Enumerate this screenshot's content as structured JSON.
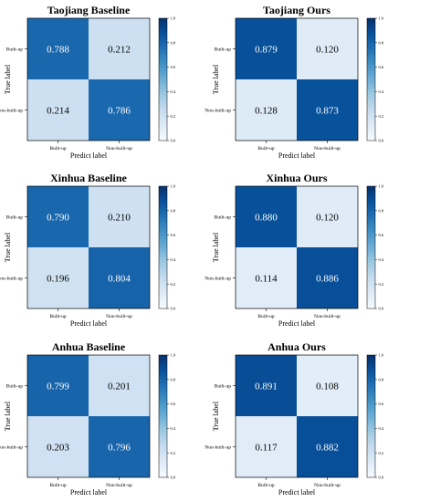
{
  "chart_data": [
    {
      "type": "heatmap",
      "title": "Taojiang Baseline",
      "xlabel": "Predict label",
      "ylabel": "True label",
      "x_categories": [
        "Built-up",
        "Non-built-up"
      ],
      "y_categories": [
        "Built-up",
        "Non-built-up"
      ],
      "values": [
        [
          0.788,
          0.212
        ],
        [
          0.214,
          0.786
        ]
      ],
      "cell_labels": [
        [
          "0.788",
          "0.212"
        ],
        [
          "0.214",
          "0.786"
        ]
      ],
      "colorbar": {
        "range": [
          0.0,
          1.0
        ],
        "ticks": [
          "0.0",
          "0.2",
          "0.4",
          "0.6",
          "0.8",
          "1.0"
        ],
        "colormap": "Blues"
      }
    },
    {
      "type": "heatmap",
      "title": "Taojiang Ours",
      "xlabel": "Predict label",
      "ylabel": "True label",
      "x_categories": [
        "Built-up",
        "Non-built-up"
      ],
      "y_categories": [
        "Built-up",
        "Non-built-up"
      ],
      "values": [
        [
          0.879,
          0.12
        ],
        [
          0.128,
          0.873
        ]
      ],
      "cell_labels": [
        [
          "0.879",
          "0.120"
        ],
        [
          "0.128",
          "0.873"
        ]
      ],
      "colorbar": {
        "range": [
          0.0,
          1.0
        ],
        "ticks": [
          "0.0",
          "0.2",
          "0.4",
          "0.6",
          "0.8",
          "1.0"
        ],
        "colormap": "Blues"
      }
    },
    {
      "type": "heatmap",
      "title": "Xinhua Baseline",
      "xlabel": "Predict label",
      "ylabel": "True label",
      "x_categories": [
        "Built-up",
        "Non-built-up"
      ],
      "y_categories": [
        "Built-up",
        "Non-built-up"
      ],
      "values": [
        [
          0.79,
          0.21
        ],
        [
          0.196,
          0.804
        ]
      ],
      "cell_labels": [
        [
          "0.790",
          "0.210"
        ],
        [
          "0.196",
          "0.804"
        ]
      ],
      "colorbar": {
        "range": [
          0.0,
          1.0
        ],
        "ticks": [
          "0.0",
          "0.2",
          "0.4",
          "0.6",
          "0.8",
          "1.0"
        ],
        "colormap": "Blues"
      }
    },
    {
      "type": "heatmap",
      "title": "Xinhua Ours",
      "xlabel": "Predict label",
      "ylabel": "True label",
      "x_categories": [
        "Built-up",
        "Non-built-up"
      ],
      "y_categories": [
        "Built-up",
        "Non-built-up"
      ],
      "values": [
        [
          0.88,
          0.12
        ],
        [
          0.114,
          0.886
        ]
      ],
      "cell_labels": [
        [
          "0.880",
          "0.120"
        ],
        [
          "0.114",
          "0.886"
        ]
      ],
      "colorbar": {
        "range": [
          0.0,
          1.0
        ],
        "ticks": [
          "0.0",
          "0.2",
          "0.4",
          "0.6",
          "0.8",
          "1.0"
        ],
        "colormap": "Blues"
      }
    },
    {
      "type": "heatmap",
      "title": "Anhua Baseline",
      "xlabel": "Predict label",
      "ylabel": "True label",
      "x_categories": [
        "Built-up",
        "Non-built-up"
      ],
      "y_categories": [
        "Built-up",
        "Non-built-up"
      ],
      "values": [
        [
          0.799,
          0.201
        ],
        [
          0.203,
          0.796
        ]
      ],
      "cell_labels": [
        [
          "0.799",
          "0.201"
        ],
        [
          "0.203",
          "0.796"
        ]
      ],
      "colorbar": {
        "range": [
          0.0,
          1.0
        ],
        "ticks": [
          "0.0",
          "0.2",
          "0.4",
          "0.6",
          "0.8",
          "1.0"
        ],
        "colormap": "Blues"
      }
    },
    {
      "type": "heatmap",
      "title": "Anhua Ours",
      "xlabel": "Predict label",
      "ylabel": "True label",
      "x_categories": [
        "Built-up",
        "Non-built-up"
      ],
      "y_categories": [
        "Built-up",
        "Non-built-up"
      ],
      "values": [
        [
          0.891,
          0.108
        ],
        [
          0.117,
          0.882
        ]
      ],
      "cell_labels": [
        [
          "0.891",
          "0.108"
        ],
        [
          "0.117",
          "0.882"
        ]
      ],
      "colorbar": {
        "range": [
          0.0,
          1.0
        ],
        "ticks": [
          "0.0",
          "0.2",
          "0.4",
          "0.6",
          "0.8",
          "1.0"
        ],
        "colormap": "Blues"
      }
    }
  ]
}
